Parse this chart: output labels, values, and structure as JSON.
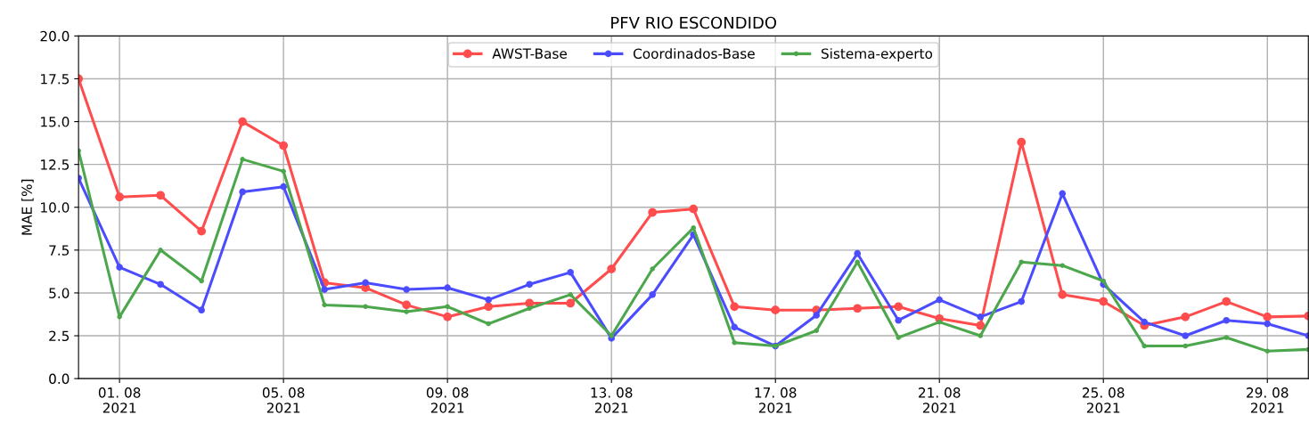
{
  "chart_data": {
    "type": "line",
    "title": "PFV RIO ESCONDIDO",
    "ylabel": "MAE [%]",
    "x": [
      "2021-07-31",
      "2021-08-01",
      "2021-08-02",
      "2021-08-03",
      "2021-08-04",
      "2021-08-05",
      "2021-08-06",
      "2021-08-07",
      "2021-08-08",
      "2021-08-09",
      "2021-08-10",
      "2021-08-11",
      "2021-08-12",
      "2021-08-13",
      "2021-08-14",
      "2021-08-15",
      "2021-08-16",
      "2021-08-17",
      "2021-08-18",
      "2021-08-19",
      "2021-08-20",
      "2021-08-21",
      "2021-08-22",
      "2021-08-23",
      "2021-08-24",
      "2021-08-25",
      "2021-08-26",
      "2021-08-27",
      "2021-08-28",
      "2021-08-29",
      "2021-08-30"
    ],
    "series": [
      {
        "name": "AWST-Base",
        "color": "#ff4c4c",
        "values": [
          17.5,
          10.6,
          10.7,
          8.6,
          15.0,
          13.6,
          5.6,
          5.3,
          4.3,
          3.6,
          4.2,
          4.4,
          4.4,
          6.4,
          9.7,
          9.9,
          4.2,
          4.0,
          4.0,
          4.1,
          4.2,
          3.5,
          3.1,
          13.8,
          4.9,
          4.5,
          3.1,
          3.6,
          4.5,
          3.6,
          3.65
        ]
      },
      {
        "name": "Coordinados-Base",
        "color": "#4c4cff",
        "values": [
          11.7,
          6.5,
          5.5,
          4.0,
          10.9,
          11.2,
          5.2,
          5.6,
          5.2,
          5.3,
          4.6,
          5.5,
          6.2,
          2.35,
          4.9,
          8.4,
          3.0,
          1.9,
          3.7,
          7.3,
          3.4,
          4.6,
          3.6,
          4.5,
          10.8,
          5.5,
          3.3,
          2.5,
          3.4,
          3.2,
          2.5
        ]
      },
      {
        "name": "Sistema-experto",
        "color": "#4ca64c",
        "values": [
          13.3,
          3.6,
          7.5,
          5.7,
          12.8,
          12.1,
          4.3,
          4.2,
          3.9,
          4.2,
          3.2,
          4.1,
          4.9,
          2.5,
          6.4,
          8.8,
          2.1,
          1.9,
          2.8,
          6.8,
          2.4,
          3.3,
          2.5,
          6.8,
          6.6,
          5.7,
          1.9,
          1.9,
          2.4,
          1.6,
          1.7
        ]
      }
    ],
    "xlim": [
      "2021-07-31",
      "2021-08-30"
    ],
    "xticks": [
      {
        "value": "2021-08-01",
        "label": "01. 08\n2021"
      },
      {
        "value": "2021-08-05",
        "label": "05. 08\n2021"
      },
      {
        "value": "2021-08-09",
        "label": "09. 08\n2021"
      },
      {
        "value": "2021-08-13",
        "label": "13. 08\n2021"
      },
      {
        "value": "2021-08-17",
        "label": "17. 08\n2021"
      },
      {
        "value": "2021-08-21",
        "label": "21. 08\n2021"
      },
      {
        "value": "2021-08-25",
        "label": "25. 08\n2021"
      },
      {
        "value": "2021-08-29",
        "label": "29. 08\n2021"
      }
    ],
    "ylim": [
      0,
      20
    ],
    "yticks": [
      {
        "value": 0,
        "label": "0.0"
      },
      {
        "value": 2.5,
        "label": "2.5"
      },
      {
        "value": 5,
        "label": "5.0"
      },
      {
        "value": 7.5,
        "label": "7.5"
      },
      {
        "value": 10,
        "label": "10.0"
      },
      {
        "value": 12.5,
        "label": "12.5"
      },
      {
        "value": 15,
        "label": "15.0"
      },
      {
        "value": 17.5,
        "label": "17.5"
      },
      {
        "value": 20,
        "label": "20.0"
      }
    ],
    "grid": true,
    "legend": "top",
    "marker": "circle",
    "line_style": "solid"
  }
}
